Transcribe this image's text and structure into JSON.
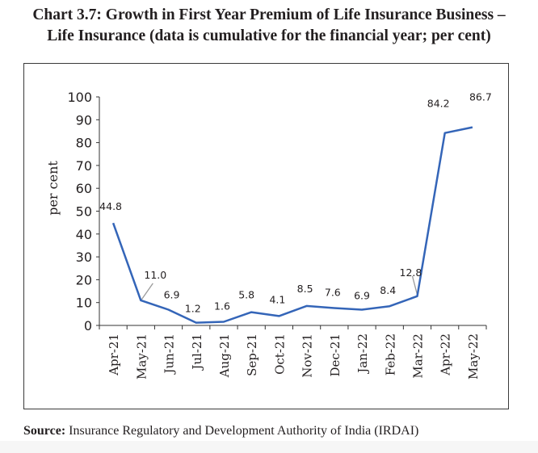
{
  "title_line1": "Chart 3.7: Growth in First Year Premium of Life Insurance Business –",
  "title_line2": "Life Insurance (data is cumulative for the financial year; per cent)",
  "source_label": "Source:",
  "source_text": " Insurance Regulatory and Development Authority of India (IRDAI)",
  "chart_data": {
    "type": "line",
    "title": "Chart 3.7: Growth in First Year Premium of Life Insurance Business – Life Insurance (data is cumulative for the financial year; per cent)",
    "xlabel": "",
    "ylabel": "per cent",
    "ylim": [
      0,
      100
    ],
    "yticks": [
      0,
      10,
      20,
      30,
      40,
      50,
      60,
      70,
      80,
      90,
      100
    ],
    "grid": false,
    "legend": "none",
    "categories": [
      "Apr-21",
      "May-21",
      "Jun-21",
      "Jul-21",
      "Aug-21",
      "Sep-21",
      "Oct-21",
      "Nov-21",
      "Dec-21",
      "Jan-22",
      "Feb-22",
      "Mar-22",
      "Apr-22",
      "May-22"
    ],
    "series": [
      {
        "name": "Growth in First Year Premium",
        "color": "#3465b8",
        "values": [
          44.8,
          11.0,
          6.9,
          1.2,
          1.6,
          5.8,
          4.1,
          8.5,
          7.6,
          6.9,
          8.4,
          12.8,
          84.2,
          86.7
        ],
        "labels": [
          "44.8",
          "11.0",
          "6.9",
          "1.2",
          "1.6",
          "5.8",
          "4.1",
          "8.5",
          "7.6",
          "6.9",
          "8.4",
          "12.8",
          "84.2",
          "86.7"
        ]
      }
    ]
  }
}
